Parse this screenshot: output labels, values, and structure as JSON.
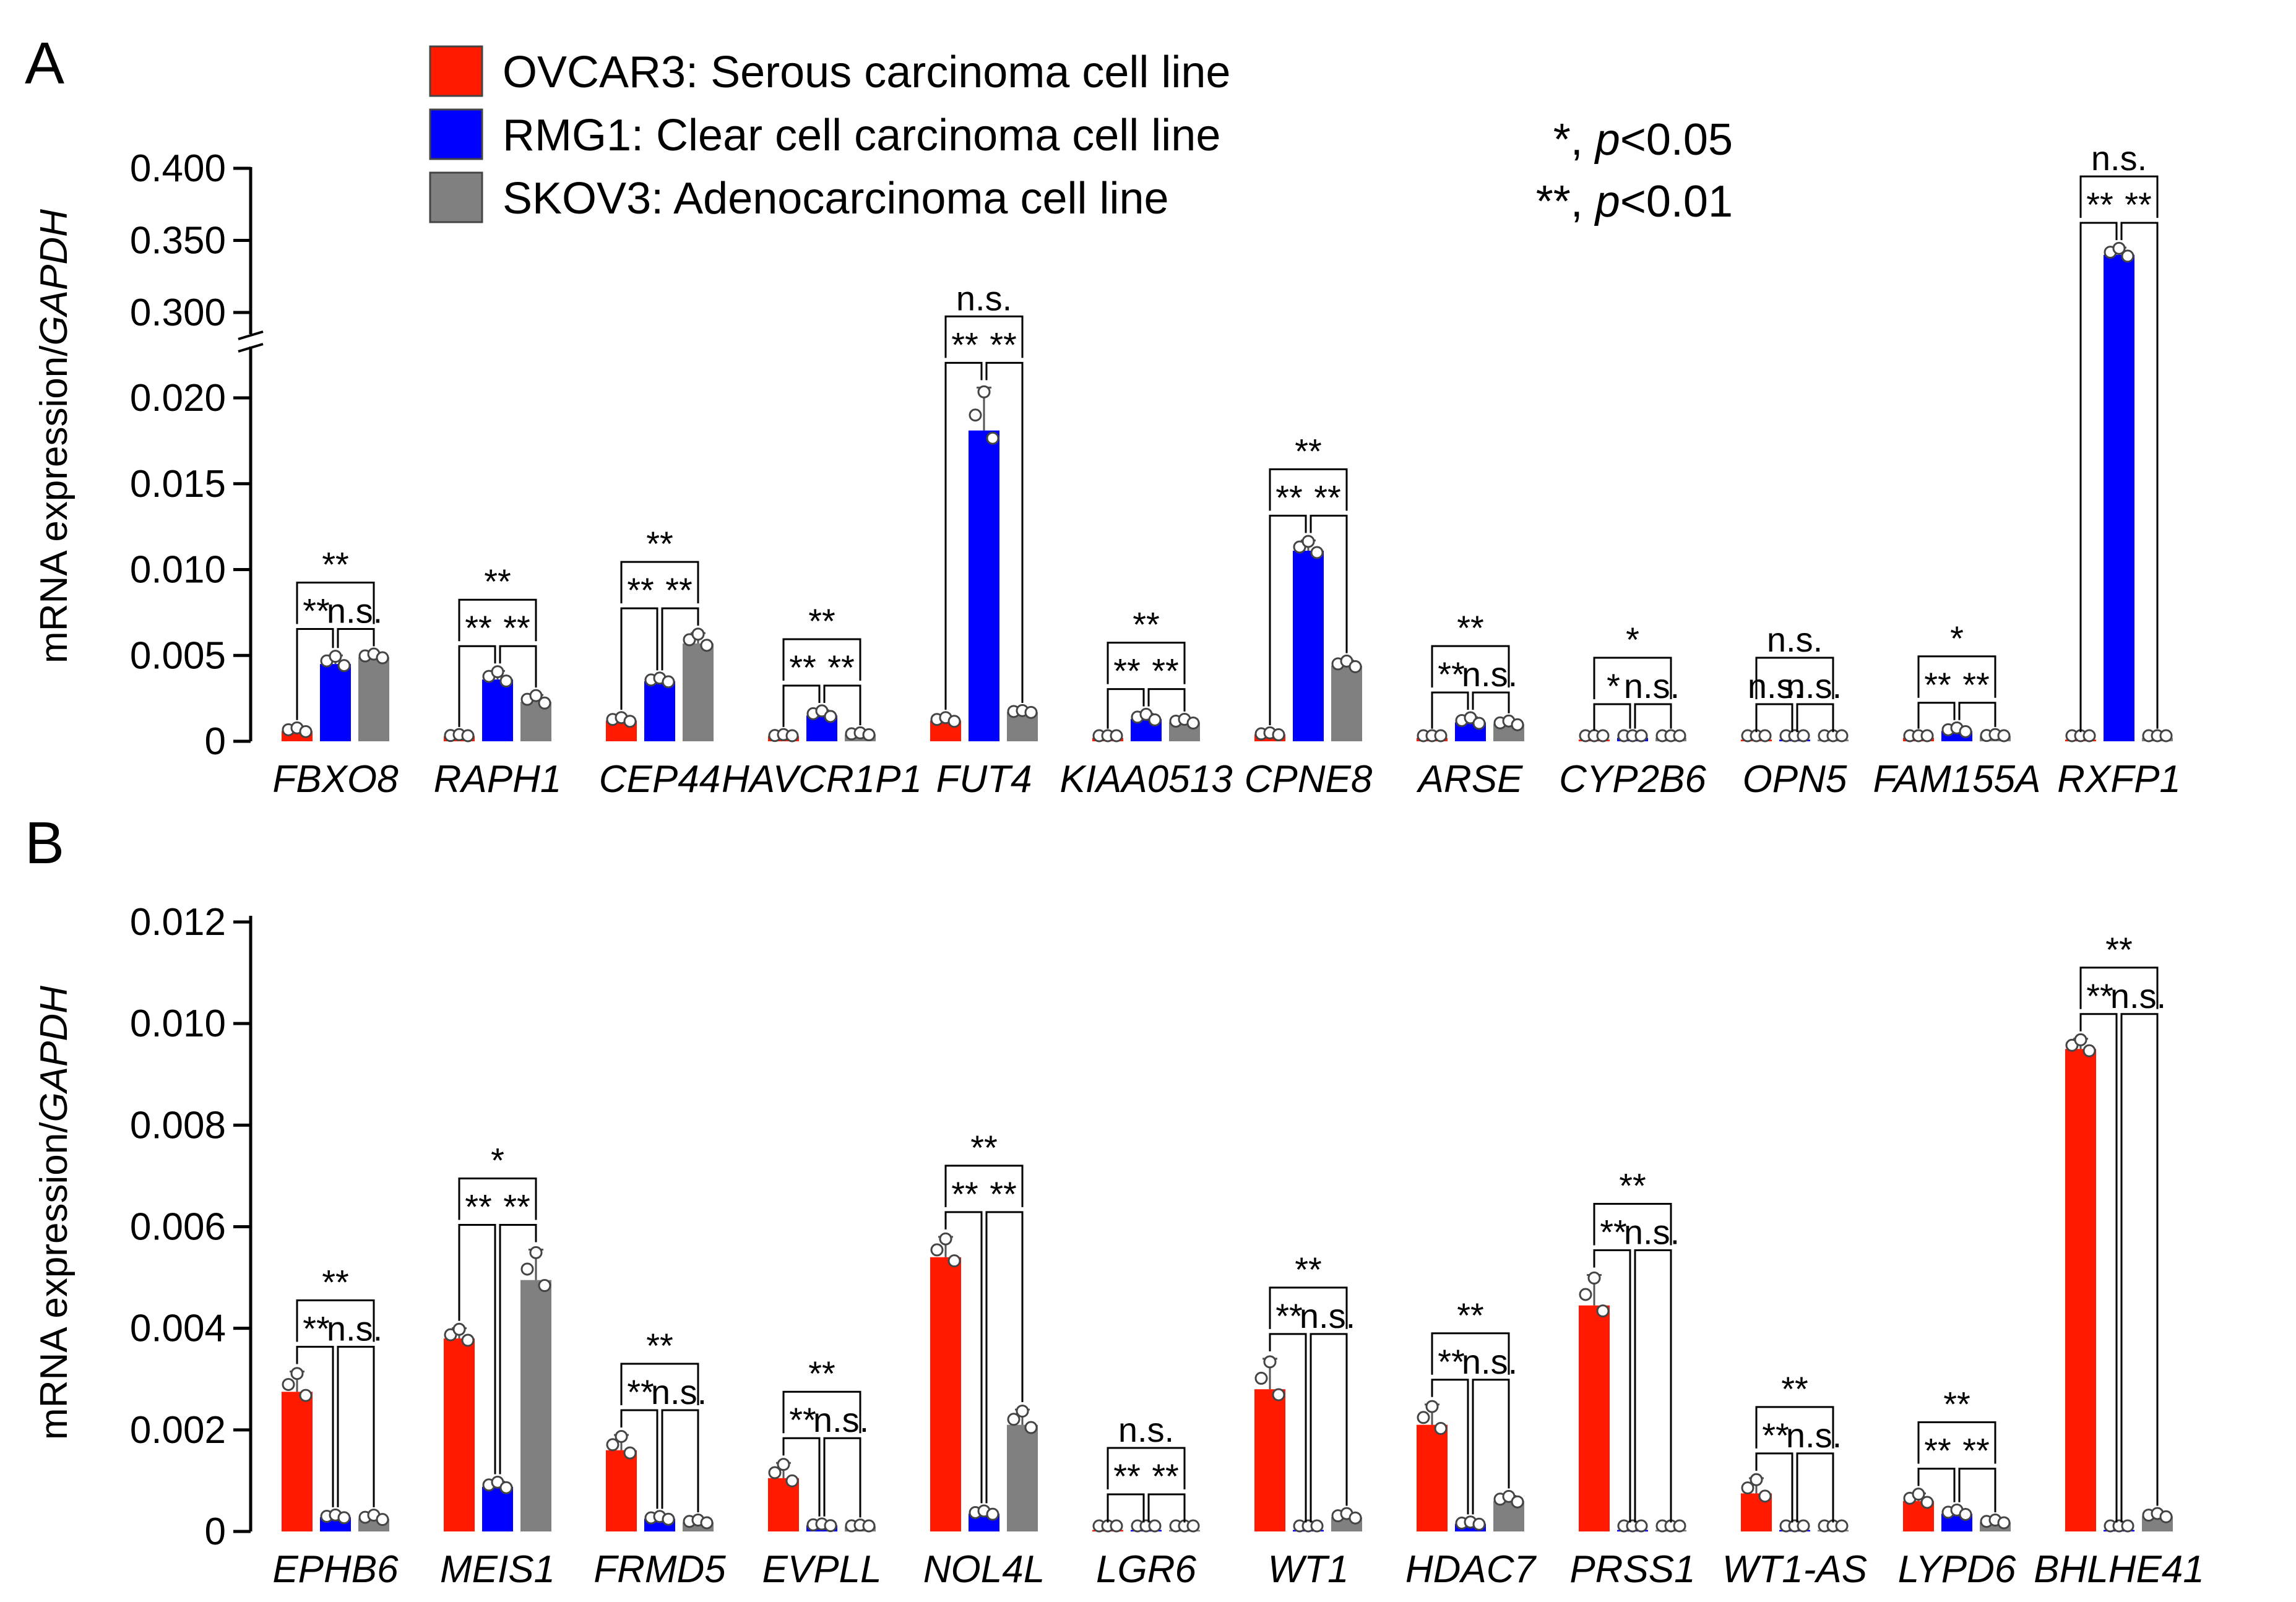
{
  "legend": {
    "items": [
      {
        "label": "OVCAR3: Serous carcinoma cell line",
        "color": "#ff1a00"
      },
      {
        "label": "RMG1: Clear cell carcinoma cell line",
        "color": "#0000ff"
      },
      {
        "label": "SKOV3: Adenocarcinoma cell line",
        "color": "#808080"
      }
    ]
  },
  "sig_notes": [
    {
      "stars": "*",
      "sep": ", ",
      "p": "p",
      "rest": "<0.05"
    },
    {
      "stars": "**",
      "sep": ", ",
      "p": "p",
      "rest": "<0.01"
    }
  ],
  "colors": {
    "OVCAR3": "#ff1a00",
    "RMG1": "#0000ff",
    "SKOV3": "#808080"
  },
  "chart_data": [
    {
      "panel": "A",
      "type": "bar",
      "ylabel_prefix": "mRNA expression/",
      "ylabel_gene": "GAPDH",
      "axis_break": true,
      "yticks_lower": [
        "0",
        "0.005",
        "0.010",
        "0.015",
        "0.020"
      ],
      "yticks_upper": [
        "0.300",
        "0.350",
        "0.400"
      ],
      "ylim_lower": [
        0,
        0.02
      ],
      "ylim_upper": [
        0.3,
        0.4
      ],
      "series_names": [
        "OVCAR3",
        "RMG1",
        "SKOV3"
      ],
      "categories": [
        "FBXO8",
        "RAPH1",
        "CEP44",
        "HAVCR1P1",
        "FUT4",
        "KIAA0513",
        "CPNE8",
        "ARSE",
        "CYP2B6",
        "OPN5",
        "FAM155A",
        "RXFP1"
      ],
      "values": [
        [
          0.0006,
          0.0045,
          0.0049
        ],
        [
          0.0003,
          0.0036,
          0.0023
        ],
        [
          0.0012,
          0.0035,
          0.0057
        ],
        [
          0.0003,
          0.0015,
          0.0004
        ],
        [
          0.0012,
          0.0181,
          0.0017
        ],
        [
          0.0002,
          0.0013,
          0.0011
        ],
        [
          0.0004,
          0.0111,
          0.0044
        ],
        [
          0.0002,
          0.0011,
          0.001
        ],
        [
          0.0001,
          0.0002,
          0.0002
        ],
        [
          0.0001,
          0.0001,
          0.0001
        ],
        [
          0.0002,
          0.0006,
          0.0003
        ],
        [
          0.0001,
          0.34,
          0.0002
        ]
      ],
      "errors": [
        [
          0.0002,
          0.0005,
          0.0002
        ],
        [
          0.0001,
          0.0005,
          0.0004
        ],
        [
          0.0002,
          0.0002,
          0.0006
        ],
        [
          0.0001,
          0.0003,
          0.0001
        ],
        [
          0.0002,
          0.0025,
          0.0001
        ],
        [
          0.0001,
          0.0003,
          0.0002
        ],
        [
          0.0001,
          0.0006,
          0.0003
        ],
        [
          0.0001,
          0.0003,
          0.0002
        ],
        [
          0.0001,
          0.0001,
          0.0001
        ],
        [
          0.0,
          0.0,
          0.0
        ],
        [
          0.0001,
          0.0002,
          0.0001
        ],
        [
          0.0,
          0.005,
          0.0001
        ]
      ],
      "significance": [
        {
          "row1": [
            "**",
            "n.s."
          ],
          "row2": "**"
        },
        {
          "row1": [
            "**",
            "**"
          ],
          "row2": "**"
        },
        {
          "row1": [
            "**",
            "**"
          ],
          "row2": "**"
        },
        {
          "row1": [
            "**",
            "**"
          ],
          "row2": "**"
        },
        {
          "row1": [
            "**",
            "**"
          ],
          "row2": "n.s."
        },
        {
          "row1": [
            "**",
            "**"
          ],
          "row2": "**"
        },
        {
          "row1": [
            "**",
            "**"
          ],
          "row2": "**"
        },
        {
          "row1": [
            "**",
            "n.s."
          ],
          "row2": "**"
        },
        {
          "row1": [
            "*",
            "n.s."
          ],
          "row2": "*"
        },
        {
          "row1": [
            "n.s.",
            "n.s."
          ],
          "row2": "n.s."
        },
        {
          "row1": [
            "**",
            "**"
          ],
          "row2": "*"
        },
        {
          "row1": [
            "**",
            "**"
          ],
          "row2": "n.s."
        }
      ]
    },
    {
      "panel": "B",
      "type": "bar",
      "ylabel_prefix": "mRNA expression/",
      "ylabel_gene": "GAPDH",
      "axis_break": false,
      "yticks": [
        "0",
        "0.002",
        "0.004",
        "0.006",
        "0.008",
        "0.010",
        "0.012"
      ],
      "ylim": [
        0,
        0.012
      ],
      "series_names": [
        "OVCAR3",
        "RMG1",
        "SKOV3"
      ],
      "categories": [
        "EPHB6",
        "MEIS1",
        "FRMD5",
        "EVPLL",
        "NOL4L",
        "LGR6",
        "WT1",
        "HDAC7",
        "PRSS1",
        "WT1-AS",
        "LYPD6",
        "BHLHE41"
      ],
      "values": [
        [
          0.00275,
          0.00028,
          0.00025
        ],
        [
          0.0038,
          0.00088,
          0.00495
        ],
        [
          0.0016,
          0.00025,
          0.00018
        ],
        [
          0.00105,
          0.00012,
          0.0001
        ],
        [
          0.0054,
          0.00035,
          0.0021
        ],
        [
          3e-05,
          3e-05,
          3e-05
        ],
        [
          0.0028,
          3e-05,
          0.00028
        ],
        [
          0.0021,
          0.00015,
          0.0006
        ],
        [
          0.00445,
          3e-05,
          3e-05
        ],
        [
          0.00075,
          3e-05,
          3e-05
        ],
        [
          0.0006,
          0.00035,
          0.00018
        ],
        [
          0.0095,
          3e-05,
          0.0003
        ]
      ],
      "errors": [
        [
          0.0004,
          5e-05,
          8e-05
        ],
        [
          0.0002,
          0.0001,
          0.0006
        ],
        [
          0.0003,
          5e-05,
          5e-05
        ],
        [
          0.0003,
          3e-05,
          3e-05
        ],
        [
          0.0004,
          6e-05,
          0.0003
        ],
        [
          0.0,
          0.0,
          0.0
        ],
        [
          0.0006,
          0.0,
          8e-05
        ],
        [
          0.0004,
          4e-05,
          0.0001
        ],
        [
          0.0006,
          0.0,
          0.0
        ],
        [
          0.0003,
          0.0,
          0.0
        ],
        [
          0.00015,
          8e-05,
          5e-05
        ],
        [
          0.0002,
          0.0,
          6e-05
        ]
      ],
      "significance": [
        {
          "row1": [
            "**",
            "n.s."
          ],
          "row2": "**"
        },
        {
          "row1": [
            "**",
            "**"
          ],
          "row2": "*"
        },
        {
          "row1": [
            "**",
            "n.s."
          ],
          "row2": "**"
        },
        {
          "row1": [
            "**",
            "n.s."
          ],
          "row2": "**"
        },
        {
          "row1": [
            "**",
            "**"
          ],
          "row2": "**"
        },
        {
          "row1": [
            "**",
            "**"
          ],
          "row2": "n.s."
        },
        {
          "row1": [
            "**",
            "n.s."
          ],
          "row2": "**"
        },
        {
          "row1": [
            "**",
            "n.s."
          ],
          "row2": "**"
        },
        {
          "row1": [
            "**",
            "n.s."
          ],
          "row2": "**"
        },
        {
          "row1": [
            "**",
            "n.s."
          ],
          "row2": "**"
        },
        {
          "row1": [
            "**",
            "**"
          ],
          "row2": "**"
        },
        {
          "row1": [
            "**",
            "n.s."
          ],
          "row2": "**"
        }
      ]
    }
  ]
}
